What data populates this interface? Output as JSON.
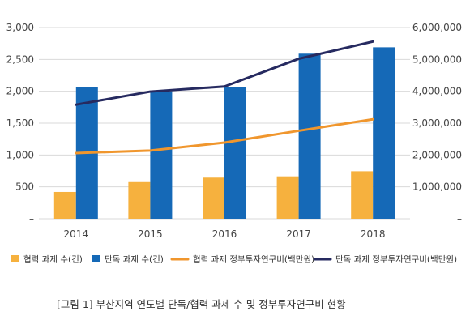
{
  "chart_data": {
    "type": "bar",
    "categories": [
      "2014",
      "2015",
      "2016",
      "2017",
      "2018"
    ],
    "series": [
      {
        "name": "협력 과제 수(건)",
        "kind": "bar",
        "axis": "left",
        "color": "#F6B13E",
        "values": [
          420,
          575,
          645,
          665,
          745
        ]
      },
      {
        "name": "단독 과제 수(건)",
        "kind": "bar",
        "axis": "left",
        "color": "#1569B7",
        "values": [
          2060,
          2000,
          2060,
          2590,
          2690
        ]
      },
      {
        "name": "협력 과제 정부투자연구비(백만원)",
        "kind": "line",
        "axis": "right",
        "color": "#F0962D",
        "values": [
          2060000,
          2140000,
          2390000,
          2760000,
          3120000
        ]
      },
      {
        "name": "단독 과제 정부투자연구비(백만원)",
        "kind": "line",
        "axis": "right",
        "color": "#262A60",
        "values": [
          3580000,
          3990000,
          4150000,
          5020000,
          5560000
        ]
      }
    ],
    "y_left": {
      "lim": [
        0,
        3000
      ],
      "ticks": [
        0,
        500,
        1000,
        1500,
        2000,
        2500,
        3000
      ],
      "tick_labels": [
        "–",
        "500",
        "1,000",
        "1,500",
        "2,000",
        "2,500",
        "3,000"
      ]
    },
    "y_right": {
      "lim": [
        0,
        6000000
      ],
      "ticks": [
        0,
        1000000,
        2000000,
        3000000,
        4000000,
        5000000,
        6000000
      ],
      "tick_labels": [
        "–",
        "1,000,000",
        "2,000,000",
        "3,000,000",
        "4,000,000",
        "5,000,000",
        "6,000,000"
      ]
    },
    "grid": true,
    "legend_position": "bottom",
    "caption": "[그림 1] 부산지역 연도별 단독/협력 과제 수 및 정부투자연구비 현황"
  }
}
